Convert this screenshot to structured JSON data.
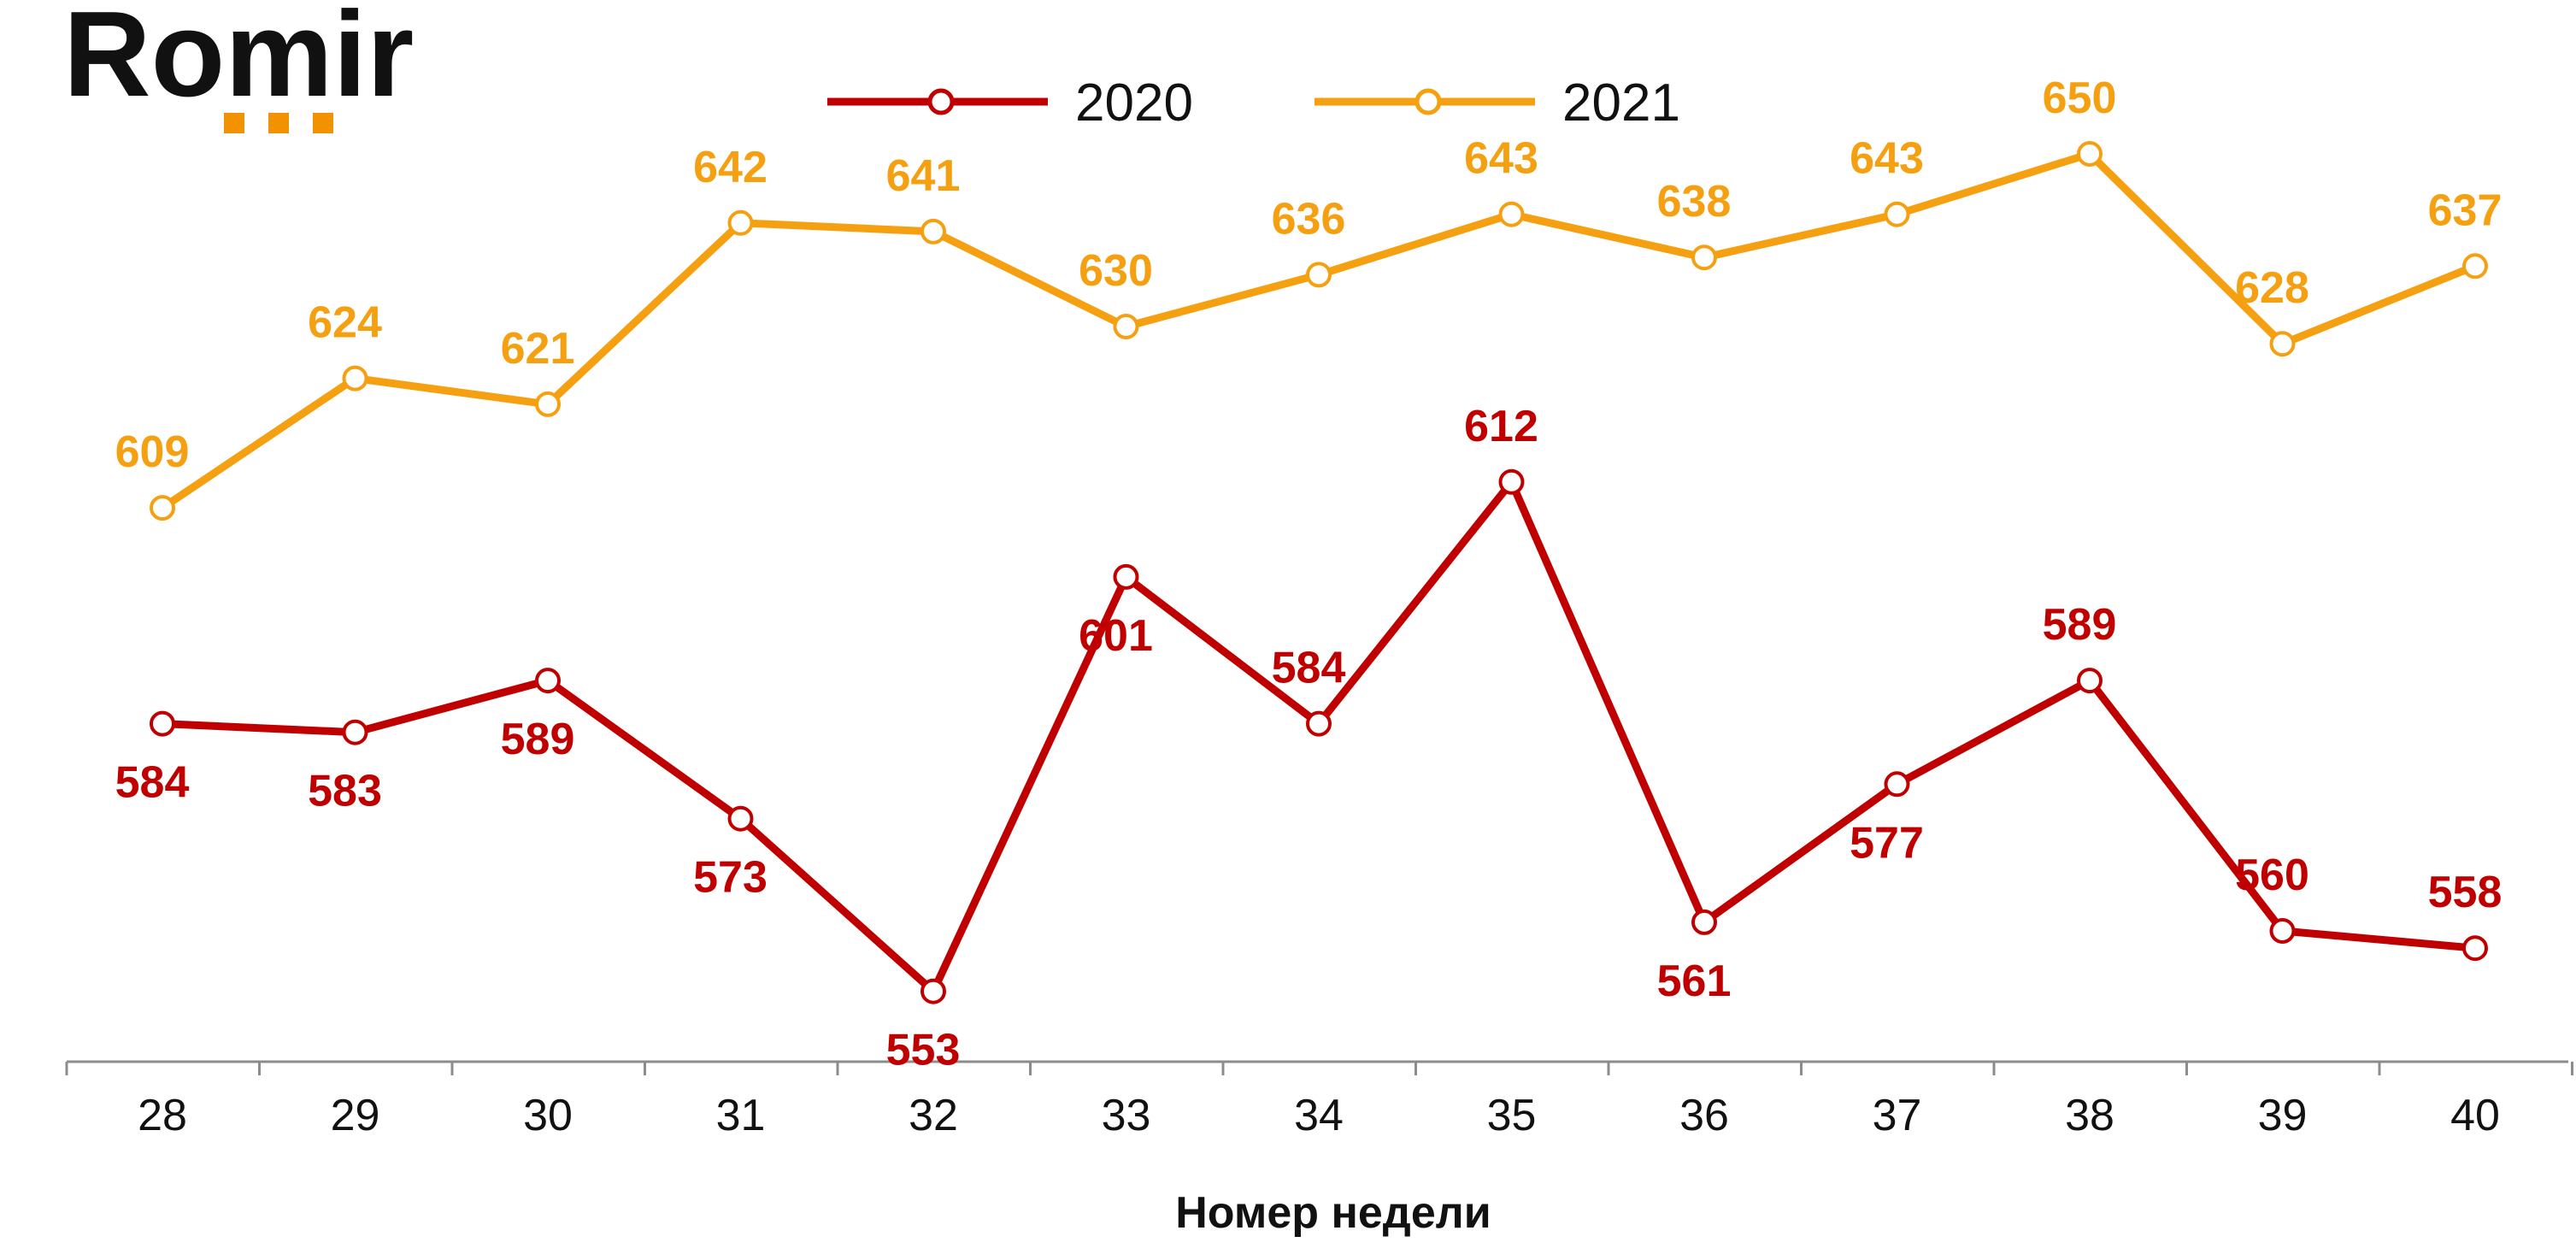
{
  "logo": {
    "text": "Romir",
    "accent_color": "#f39200"
  },
  "chart_data": {
    "type": "line",
    "title": "",
    "xlabel": "Номер недели",
    "ylabel": "",
    "x": [
      "28",
      "29",
      "30",
      "31",
      "32",
      "33",
      "34",
      "35",
      "36",
      "37",
      "38",
      "39",
      "40"
    ],
    "ylim": [
      530,
      660
    ],
    "grid": false,
    "legend_position": "top-center",
    "series": [
      {
        "name": "2020",
        "color": "#c00000",
        "values": [
          584,
          583,
          589,
          573,
          553,
          601,
          584,
          612,
          561,
          577,
          589,
          560,
          558
        ],
        "label_positions": [
          "below",
          "below",
          "below",
          "below",
          "below",
          "below",
          "above",
          "above",
          "below",
          "below",
          "above",
          "above",
          "above"
        ]
      },
      {
        "name": "2021",
        "color": "#f5a011",
        "values": [
          609,
          624,
          621,
          642,
          641,
          630,
          636,
          643,
          638,
          643,
          650,
          628,
          637
        ],
        "label_positions": [
          "above",
          "above",
          "above",
          "above",
          "above",
          "above",
          "above",
          "above",
          "above",
          "above",
          "above",
          "above",
          "above"
        ]
      }
    ]
  }
}
